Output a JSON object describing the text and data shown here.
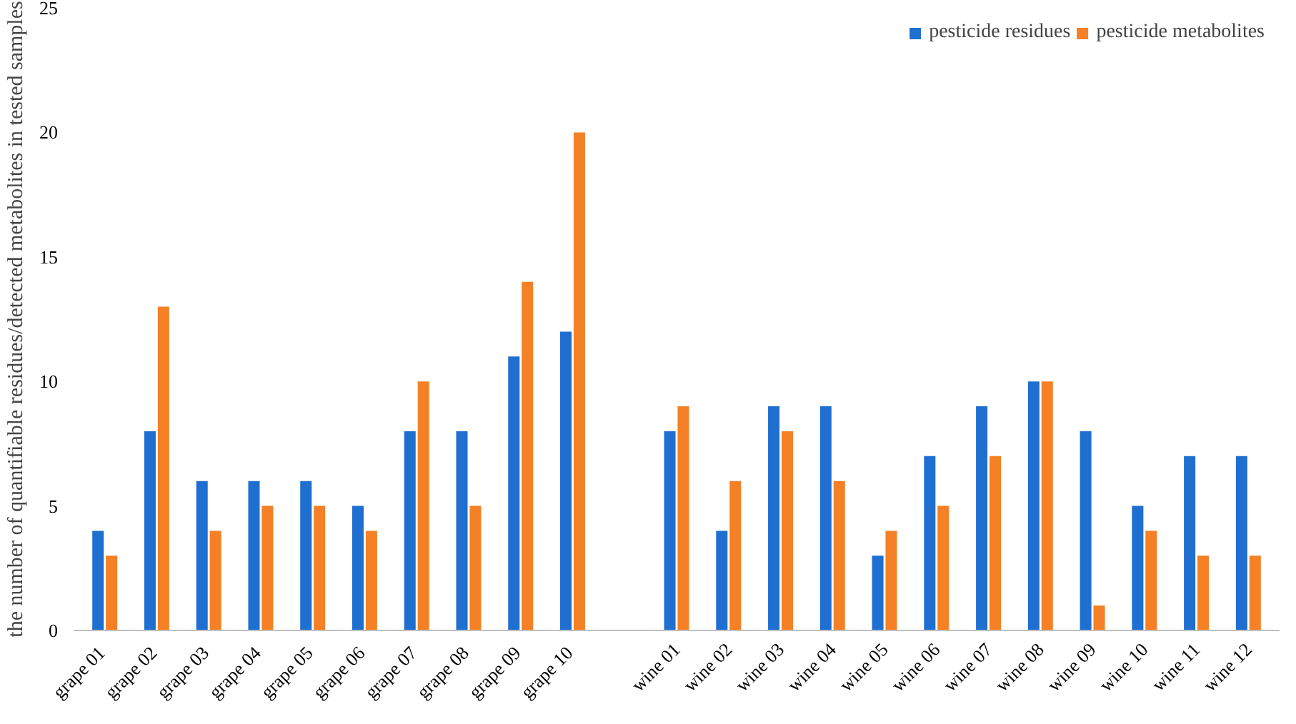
{
  "chart_data": {
    "type": "bar",
    "ylabel": "the number of quantifiable residues/detected metabolites in tested samples",
    "categories": [
      "grape  01",
      "grape  02",
      "grape  03",
      "grape  04",
      "grape  05",
      "grape  06",
      "grape  07",
      "grape  08",
      "grape  09",
      "grape  10",
      null,
      "wine 01",
      "wine 02",
      "wine 03",
      "wine 04",
      "wine 05",
      "wine 06",
      "wine 07",
      "wine 08",
      "wine 09",
      "wine 10",
      "wine 11",
      "wine 12"
    ],
    "series": [
      {
        "name": "pesticide residues",
        "color": "#1f6fd1",
        "values": [
          4,
          8,
          6,
          6,
          6,
          5,
          8,
          8,
          11,
          12,
          null,
          8,
          4,
          9,
          9,
          3,
          7,
          9,
          10,
          8,
          5,
          7,
          7
        ]
      },
      {
        "name": "pesticide metabolites",
        "color": "#f58025",
        "values": [
          3,
          13,
          4,
          5,
          5,
          4,
          10,
          5,
          14,
          20,
          null,
          9,
          6,
          8,
          6,
          4,
          5,
          7,
          10,
          1,
          4,
          3,
          3
        ]
      }
    ],
    "ylim": [
      0,
      25
    ],
    "yticks": [
      0,
      5,
      10,
      15,
      20,
      25
    ],
    "grid": false,
    "legend": "top right"
  }
}
